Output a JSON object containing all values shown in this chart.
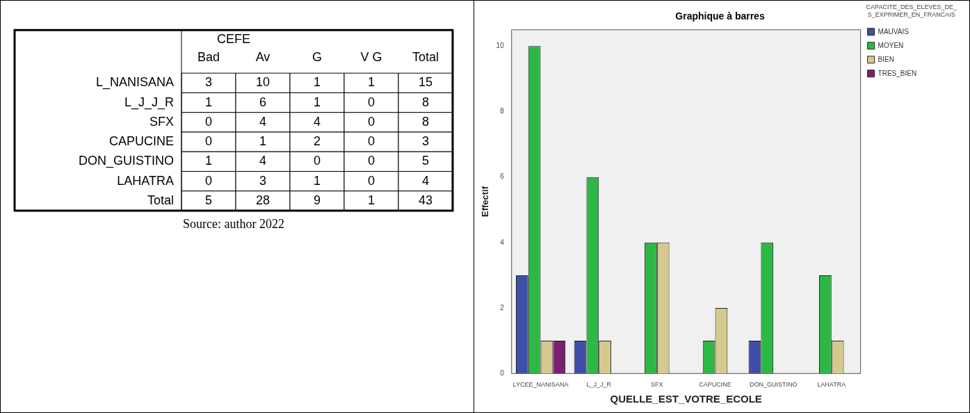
{
  "chart_data": [
    {
      "type": "heatmap",
      "title": "CEFE",
      "categories": [
        "Bad",
        "Av",
        "G",
        "V G",
        "Total"
      ],
      "y_categories": [
        "L_NANISANA",
        "L_J_J_R",
        "SFX",
        "CAPUCINE",
        "DON_GUISTINO",
        "LAHATRA",
        "Total"
      ],
      "cells": [
        [
          3,
          10,
          1,
          1,
          15
        ],
        [
          1,
          6,
          1,
          0,
          8
        ],
        [
          0,
          4,
          4,
          0,
          8
        ],
        [
          0,
          1,
          2,
          0,
          3
        ],
        [
          1,
          4,
          0,
          0,
          5
        ],
        [
          0,
          3,
          1,
          0,
          4
        ],
        [
          5,
          28,
          9,
          1,
          43
        ]
      ],
      "data_labels": true,
      "annotations": [
        "Source: author 2022"
      ]
    },
    {
      "type": "bar",
      "title": "Graphique à barres",
      "xlabel": "QUELLE_EST_VOTRE_ECOLE",
      "ylabel": "Effectif",
      "legend_title": "CAPACITE_DES_ELEVES_DE_S_EXPRIMER_EN_FRANCAIS",
      "legend": "right",
      "grid": false,
      "categories": [
        "LYCEE_NANISANA",
        "L_J_J_R",
        "SFX",
        "CAPUCINE",
        "DON_GUISTINO",
        "LAHATRA"
      ],
      "ylim": [
        0,
        10.5
      ],
      "yticks": [
        0,
        2,
        4,
        6,
        8,
        10
      ],
      "series": [
        {
          "name": "MAUVAIS",
          "color": "#3e4fa8",
          "values": [
            3,
            1,
            0,
            0,
            1,
            0
          ]
        },
        {
          "name": "MOYEN",
          "color": "#2db845",
          "values": [
            10,
            6,
            4,
            1,
            4,
            3
          ]
        },
        {
          "name": "BIEN",
          "color": "#d6c98f",
          "values": [
            1,
            1,
            4,
            2,
            0,
            1
          ]
        },
        {
          "name": "TRES_BIEN",
          "color": "#7a2070",
          "values": [
            1,
            0,
            0,
            0,
            0,
            0
          ]
        }
      ]
    }
  ]
}
